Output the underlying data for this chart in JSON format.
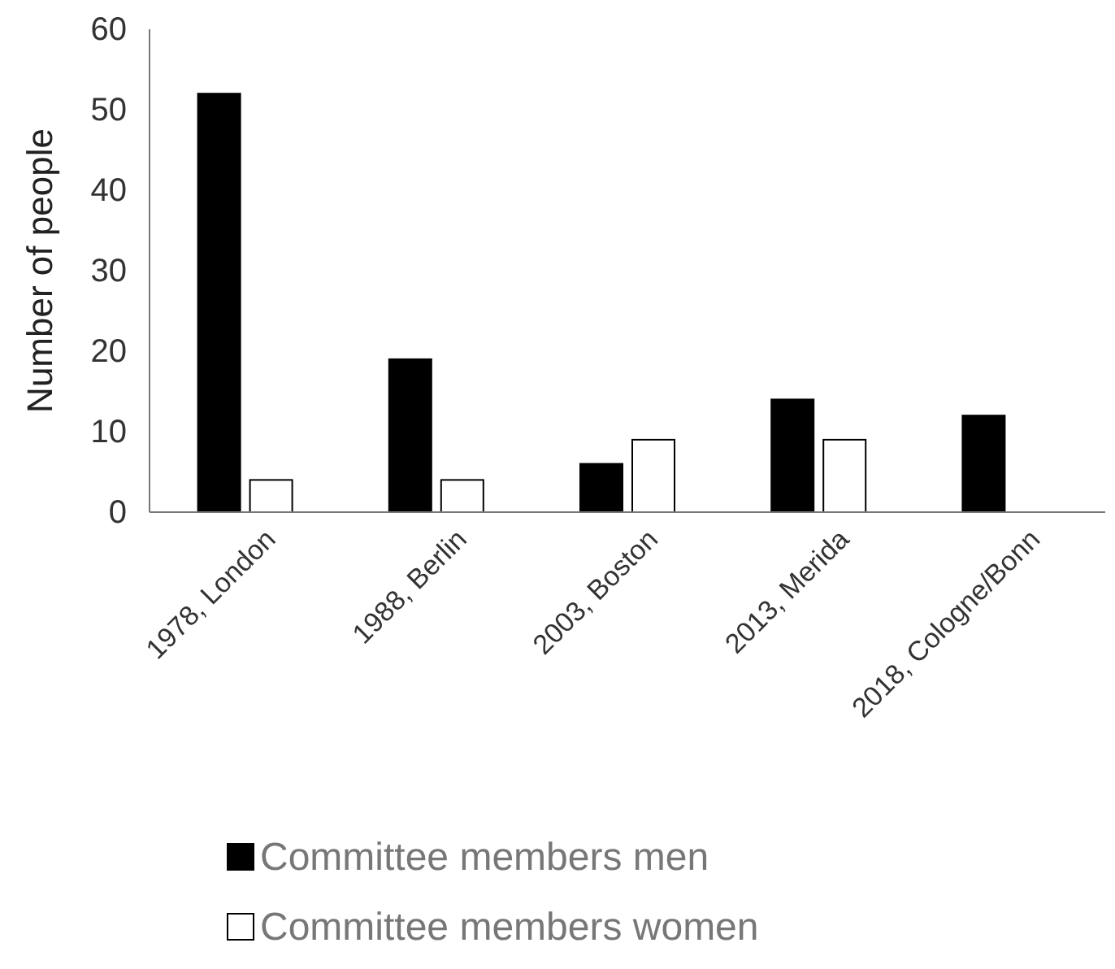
{
  "chart_data": {
    "type": "bar",
    "ylabel": "Number of people",
    "categories": [
      "1978, London",
      "1988, Berlin",
      "2003, Boston",
      "2013, Merida",
      "2018, Cologne/Bonn"
    ],
    "series": [
      {
        "name": "Committee members men",
        "color": "#000000",
        "values": [
          52,
          19,
          6,
          14,
          12
        ]
      },
      {
        "name": "Committee members women",
        "color": "#ffffff",
        "values": [
          4,
          4,
          9,
          9,
          0
        ]
      }
    ],
    "ylim": [
      0,
      60
    ],
    "yticks": [
      0,
      10,
      20,
      30,
      40,
      50,
      60
    ],
    "grid": false,
    "legend": "bottom"
  }
}
